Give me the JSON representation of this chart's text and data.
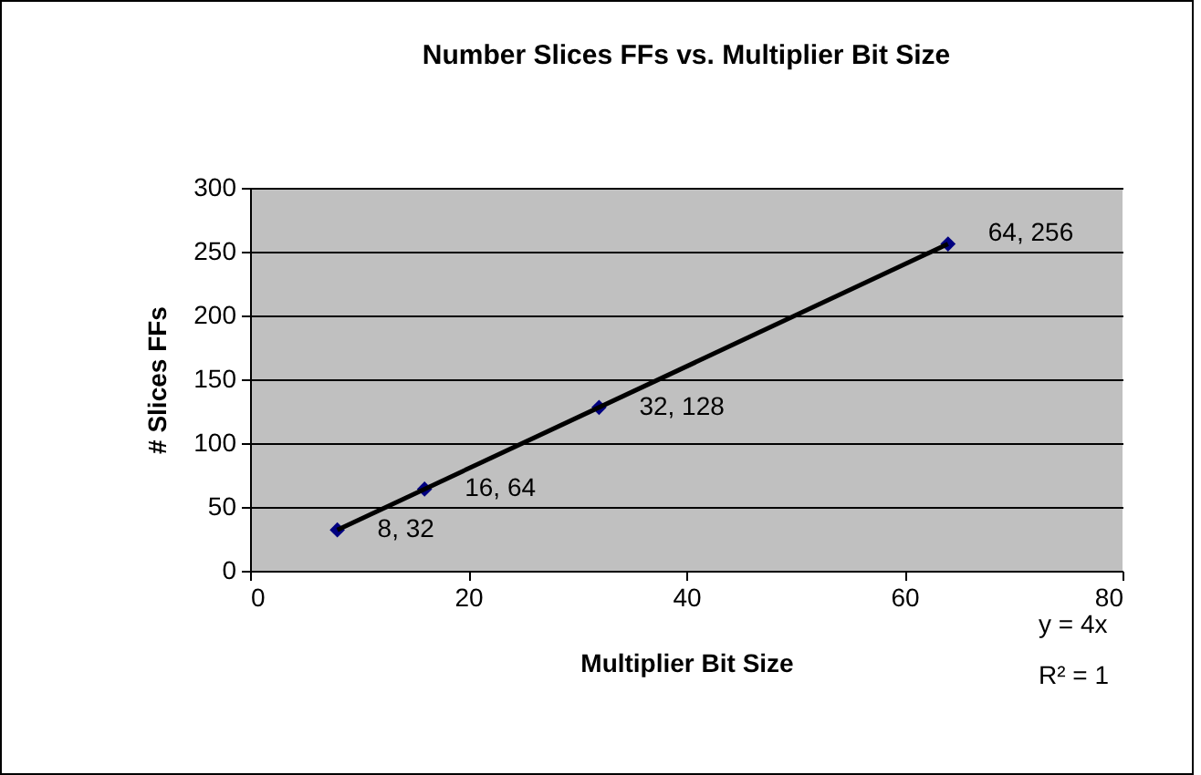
{
  "chart_data": {
    "type": "scatter",
    "title": "Number Slices FFs vs. Multiplier Bit Size",
    "xlabel": "Multiplier Bit Size",
    "ylabel": "# Slices FFs",
    "x": [
      8,
      16,
      32,
      64
    ],
    "series": [
      {
        "type": "scatter",
        "color": "#000080",
        "marker": "diamond",
        "values": [
          32,
          64,
          128,
          256
        ],
        "value_labels": [
          "8, 32",
          "16, 64",
          "32, 128",
          "64, 256"
        ]
      },
      {
        "type": "line",
        "color": "#000000",
        "marker": "none",
        "x": [
          8,
          64
        ],
        "values": [
          32,
          256
        ]
      }
    ],
    "xlim": [
      0,
      80
    ],
    "xticks": [
      0,
      20,
      40,
      60,
      80
    ],
    "ylim": [
      0,
      300
    ],
    "yticks": [
      0,
      50,
      100,
      150,
      200,
      250,
      300
    ],
    "grid": "y",
    "legend": false,
    "line_style": "solid",
    "annotations": [
      "y = 4x",
      "R² = 1"
    ]
  }
}
